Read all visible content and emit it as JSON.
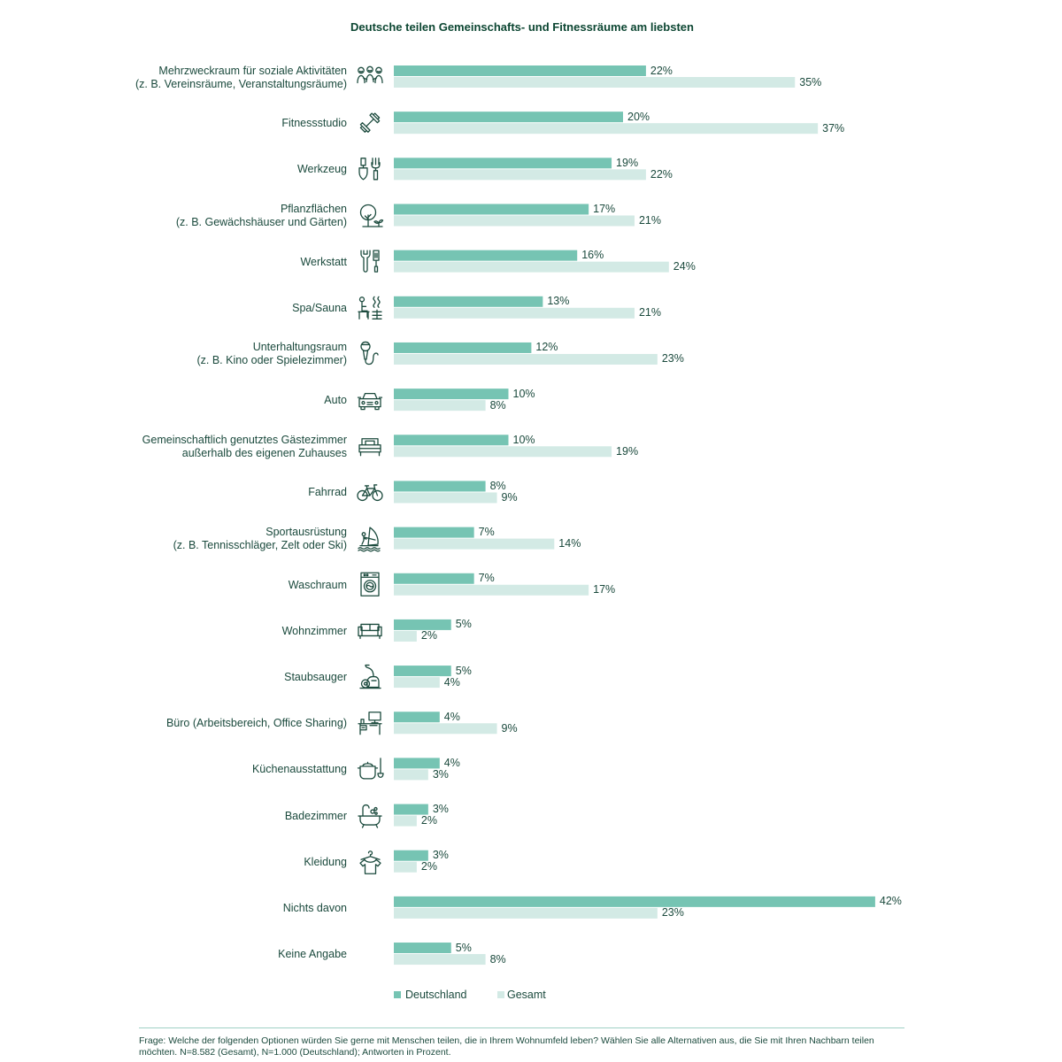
{
  "colors": {
    "text": "#1b4a3d",
    "title": "#0c4632",
    "divider": "#9fd0c5"
  },
  "chart_data": {
    "type": "bar",
    "orientation": "horizontal",
    "title": "Deutsche teilen Gemeinschafts- und Fitnessräume am liebsten",
    "categories": [
      "Mehrzweckraum für soziale Aktivitäten\n(z. B. Vereinsräume, Veranstaltungsräume)",
      "Fitnessstudio",
      "Werkzeug",
      "Pflanzflächen\n(z. B. Gewächshäuser und Gärten)",
      "Werkstatt",
      "Spa/Sauna",
      "Unterhaltungsraum\n(z. B. Kino oder Spielezimmer)",
      "Auto",
      "Gemeinschaftlich genutztes Gästezimmer\naußerhalb des eigenen Zuhauses",
      "Fahrrad",
      "Sportausrüstung\n(z. B. Tennisschläger, Zelt oder Ski)",
      "Waschraum",
      "Wohnzimmer",
      "Staubsauger",
      "Büro (Arbeitsbereich, Office Sharing)",
      "Küchenausstattung",
      "Badezimmer",
      "Kleidung",
      "Nichts davon",
      "Keine Angabe"
    ],
    "icons": [
      "people-icon",
      "dumbbell-icon",
      "tools-icon",
      "tree-icon",
      "wrench-screwdriver-icon",
      "sauna-icon",
      "microphone-icon",
      "car-icon",
      "bed-icon",
      "bicycle-icon",
      "windsurf-icon",
      "washing-machine-icon",
      "sofa-icon",
      "vacuum-cleaner-icon",
      "desk-computer-icon",
      "cooking-pot-icon",
      "bathtub-icon",
      "clothes-hanger-icon",
      null,
      null
    ],
    "series": [
      {
        "name": "Deutschland",
        "color": "#76c4b3",
        "values": [
          22,
          20,
          19,
          17,
          16,
          13,
          12,
          10,
          10,
          8,
          7,
          7,
          5,
          5,
          4,
          4,
          3,
          3,
          42,
          5
        ]
      },
      {
        "name": "Gesamt",
        "color": "#d3eae5",
        "values": [
          35,
          37,
          22,
          21,
          24,
          21,
          23,
          8,
          19,
          9,
          14,
          17,
          2,
          4,
          9,
          3,
          2,
          2,
          23,
          8
        ]
      }
    ],
    "value_suffix": "%",
    "data_labels": true,
    "grid": false,
    "axes_visible": false,
    "legend_position": "bottom-left"
  },
  "footer": {
    "note": "Frage: Welche der folgenden Optionen würden Sie gerne mit Menschen teilen, die in Ihrem Wohnumfeld leben? Wählen Sie alle Alternativen aus, die Sie mit Ihren Nachbarn teilen\nmöchten. N=8.582 (Gesamt), N=1.000 (Deutschland); Antworten in Prozent."
  }
}
